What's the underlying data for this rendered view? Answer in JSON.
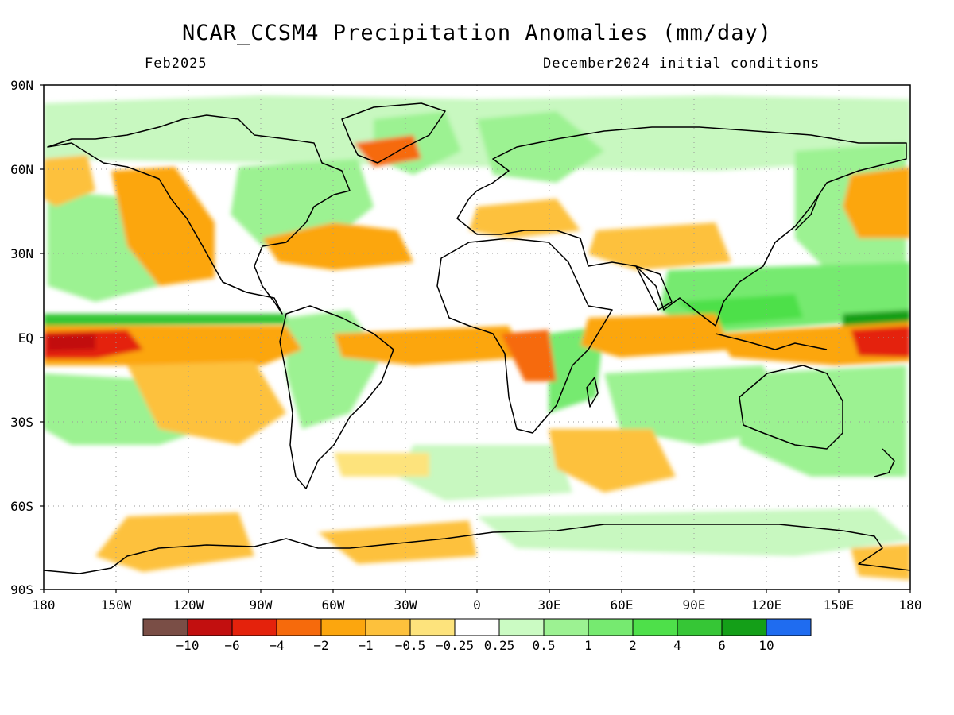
{
  "title": "NCAR_CCSM4 Precipitation Anomalies (mm/day)",
  "valid_month": "Feb2025",
  "initial_conditions": "December2024 initial conditions",
  "lat_labels": [
    "90N",
    "60N",
    "30N",
    "EQ",
    "30S",
    "60S",
    "90S"
  ],
  "lon_labels": [
    "180",
    "150W",
    "120W",
    "90W",
    "60W",
    "30W",
    "0",
    "30E",
    "60E",
    "90E",
    "120E",
    "150E",
    "180"
  ],
  "colorbar": {
    "colors": [
      "#7a4e46",
      "#c20f0f",
      "#e4220c",
      "#f66a0c",
      "#fca60e",
      "#fdc13c",
      "#fde37c",
      "#ffffff",
      "#cbfbc3",
      "#9cf292",
      "#76ea70",
      "#4ee04a",
      "#36c636",
      "#149f18",
      "#1f6cf0"
    ],
    "labels": [
      "−10",
      "−6",
      "−4",
      "−2",
      "−1",
      "−0.5",
      "−0.25",
      "0.25",
      "0.5",
      "1",
      "2",
      "4",
      "6",
      "10"
    ]
  },
  "map_colors": {
    "ocean_background": "#ffffff",
    "dry_anomaly": "#fcb23c",
    "strong_dry_anomaly": "#e4220c",
    "wet_anomaly": "#9cf292",
    "strong_wet_anomaly": "#2fbf2f",
    "coastline": "#000000",
    "grid": "#9a9a9a"
  }
}
